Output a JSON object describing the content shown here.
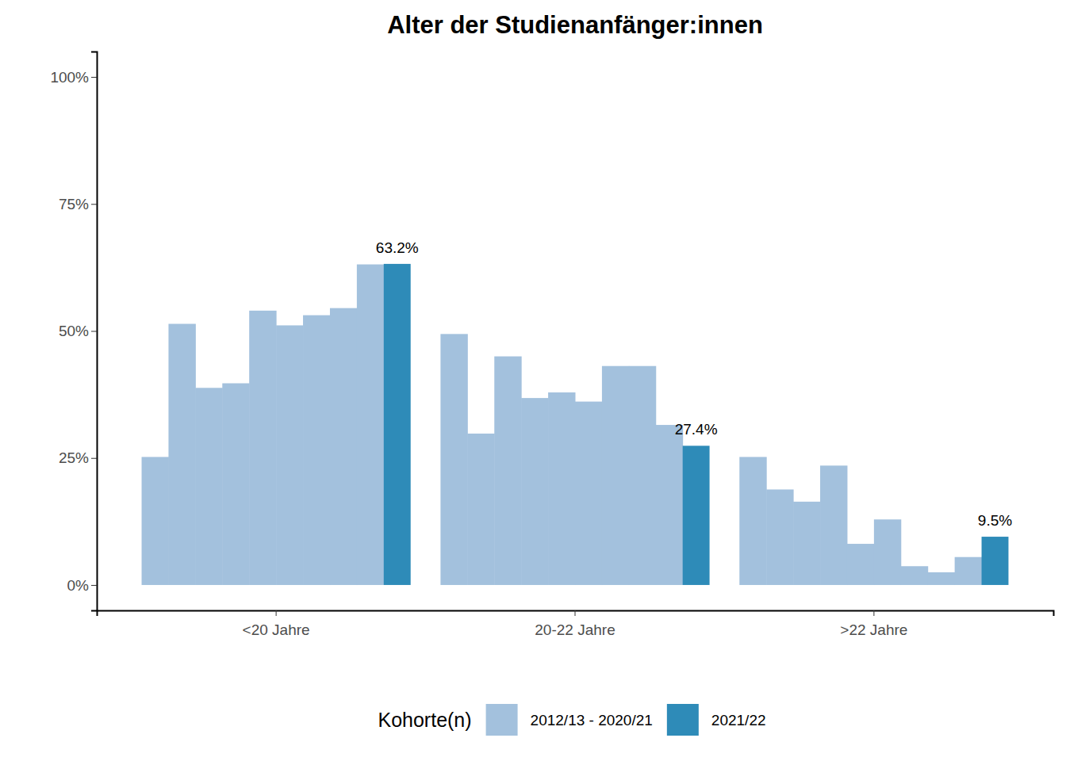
{
  "chart_data": {
    "type": "bar",
    "title": "Alter der Studienanfänger:innen",
    "categories": [
      "<20 Jahre",
      "20-22 Jahre",
      ">22 Jahre"
    ],
    "series": [
      {
        "name": "2012/13 - 2020/21",
        "color": "#a3c1dd",
        "values": [
          [
            25.2,
            51.4,
            38.8,
            39.7,
            54.0,
            51.1,
            53.1,
            54.5,
            63.1
          ],
          [
            49.4,
            29.8,
            45.0,
            36.8,
            37.9,
            36.1,
            43.1,
            43.1,
            31.5
          ],
          [
            25.2,
            18.8,
            16.4,
            23.5,
            8.1,
            12.9,
            3.7,
            2.5,
            5.5
          ]
        ]
      },
      {
        "name": "2021/22",
        "color": "#2e8bb8",
        "values": [
          63.2,
          27.4,
          9.5
        ],
        "value_labels": [
          "63.2%",
          "27.4%",
          "9.5%"
        ],
        "data_labels": true
      }
    ],
    "legend_title": "Kohorte(n)",
    "legend": "bottom",
    "ylim": [
      -5,
      105
    ],
    "yticks": [
      {
        "value": 0,
        "label": "0%"
      },
      {
        "value": 25,
        "label": "25%"
      },
      {
        "value": 50,
        "label": "50%"
      },
      {
        "value": 75,
        "label": "75%"
      },
      {
        "value": 100,
        "label": "100%"
      }
    ],
    "grid": false
  }
}
